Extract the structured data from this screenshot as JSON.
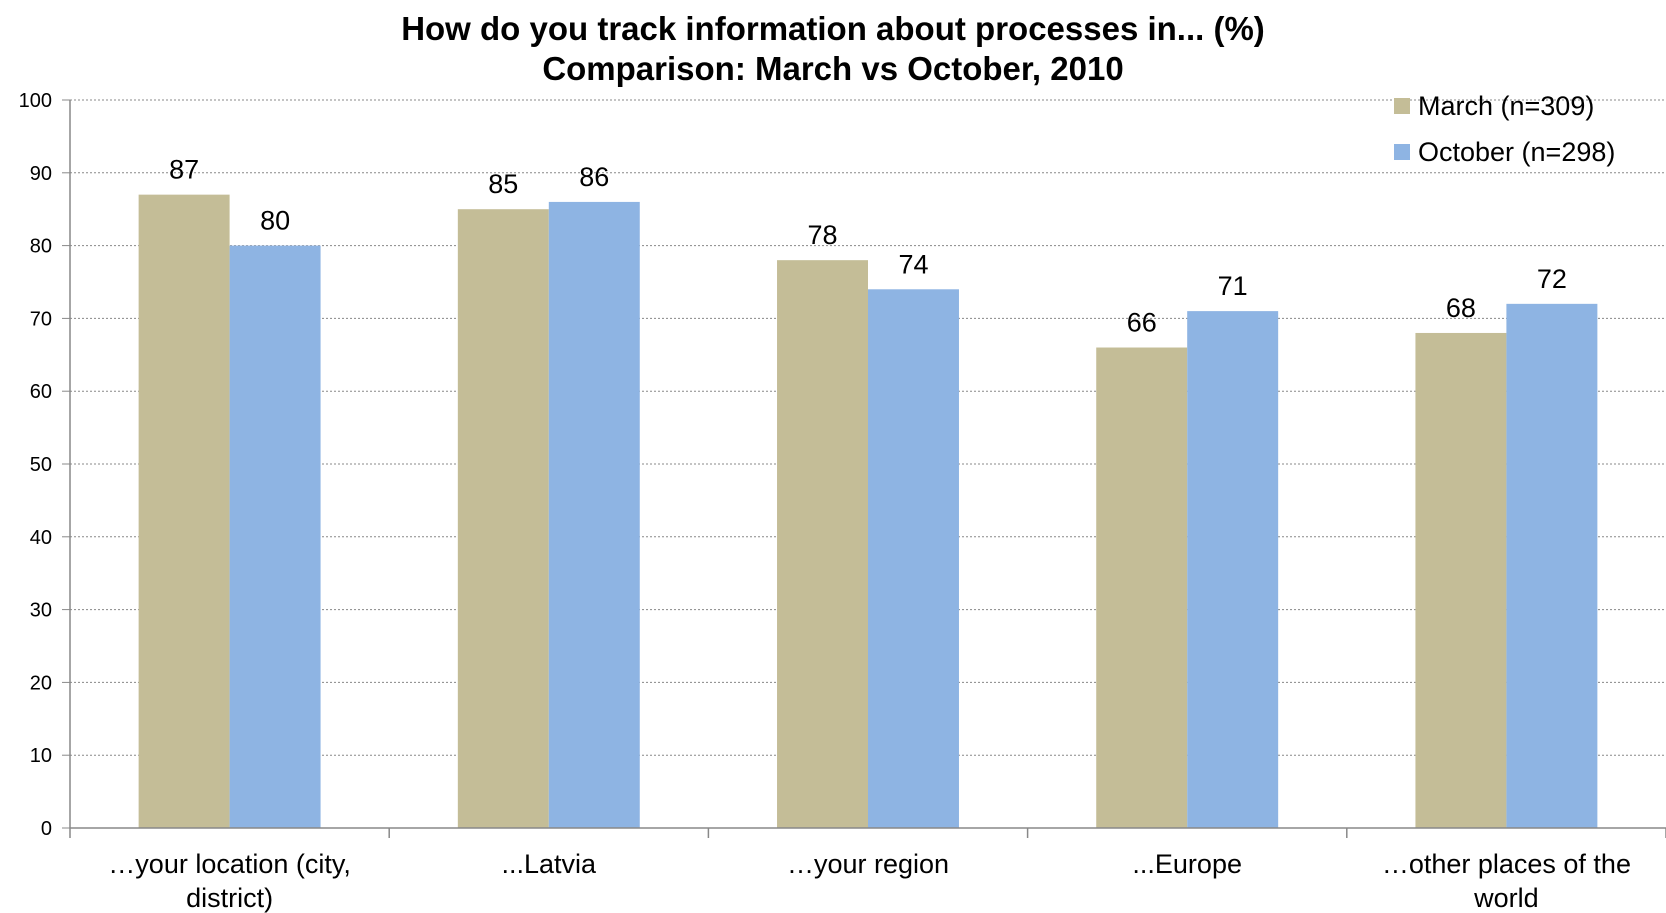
{
  "chart_data": {
    "type": "bar",
    "title": "How do you track information about processes in... (%)",
    "subtitle": "Comparison: March vs October, 2010",
    "categories": [
      [
        "…your location (city,",
        "district)"
      ],
      [
        "...Latvia"
      ],
      [
        "…your region"
      ],
      [
        "...Europe"
      ],
      [
        "…other places of the",
        "world"
      ]
    ],
    "series": [
      {
        "name": "March (n=309)",
        "color": "#c4bd97",
        "values": [
          87,
          85,
          78,
          66,
          68
        ]
      },
      {
        "name": "October (n=298)",
        "color": "#8eb4e3",
        "values": [
          80,
          86,
          74,
          71,
          72
        ]
      }
    ],
    "ylim": [
      0,
      100
    ],
    "yticks": [
      0,
      10,
      20,
      30,
      40,
      50,
      60,
      70,
      80,
      90,
      100
    ],
    "xlabel": "",
    "ylabel": "",
    "grid": true,
    "legend": "top-right"
  }
}
